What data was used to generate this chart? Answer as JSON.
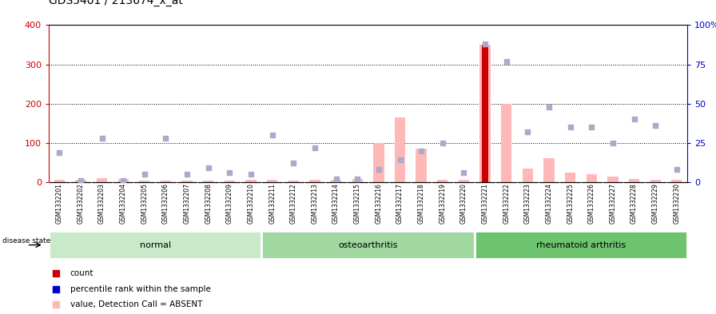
{
  "title": "GDS5401 / 213674_x_at",
  "samples": [
    "GSM1332201",
    "GSM1332202",
    "GSM1332203",
    "GSM1332204",
    "GSM1332205",
    "GSM1332206",
    "GSM1332207",
    "GSM1332208",
    "GSM1332209",
    "GSM1332210",
    "GSM1332211",
    "GSM1332212",
    "GSM1332213",
    "GSM1332214",
    "GSM1332215",
    "GSM1332216",
    "GSM1332217",
    "GSM1332218",
    "GSM1332219",
    "GSM1332220",
    "GSM1332221",
    "GSM1332222",
    "GSM1332223",
    "GSM1332224",
    "GSM1332225",
    "GSM1332226",
    "GSM1332227",
    "GSM1332228",
    "GSM1332229",
    "GSM1332230"
  ],
  "pink_bars": [
    5,
    5,
    10,
    8,
    4,
    4,
    4,
    4,
    4,
    5,
    5,
    4,
    6,
    5,
    8,
    100,
    165,
    85,
    5,
    5,
    350,
    200,
    35,
    60,
    25,
    20,
    15,
    8,
    5,
    5
  ],
  "blue_squares": [
    19,
    1,
    28,
    1,
    5,
    28,
    5,
    9,
    6,
    5,
    30,
    12,
    22,
    2,
    2,
    8,
    14,
    20,
    25,
    6,
    88,
    77,
    32,
    48,
    35,
    35,
    25,
    40,
    36,
    8
  ],
  "count_bar_index": 20,
  "count_bar_height": 350,
  "groups": [
    {
      "label": "normal",
      "start": 0,
      "end": 9,
      "color": "#c8eac8"
    },
    {
      "label": "osteoarthritis",
      "start": 10,
      "end": 19,
      "color": "#a0d8a0"
    },
    {
      "label": "rheumatoid arthritis",
      "start": 20,
      "end": 29,
      "color": "#6ec46e"
    }
  ],
  "ylim_left": [
    0,
    400
  ],
  "ylim_right": [
    0,
    100
  ],
  "yticks_left": [
    0,
    100,
    200,
    300,
    400
  ],
  "yticks_right": [
    0,
    25,
    50,
    75,
    100
  ],
  "yticklabels_right": [
    "0",
    "25",
    "50",
    "75",
    "100%"
  ],
  "left_axis_color": "#cc0000",
  "right_axis_color": "#0000cc",
  "pink_color": "#ffb8b8",
  "blue_color": "#aaaacc",
  "count_color": "#cc0000",
  "bg_color": "#ffffff",
  "plot_bg": "#ffffff",
  "grid_color": "#000000"
}
